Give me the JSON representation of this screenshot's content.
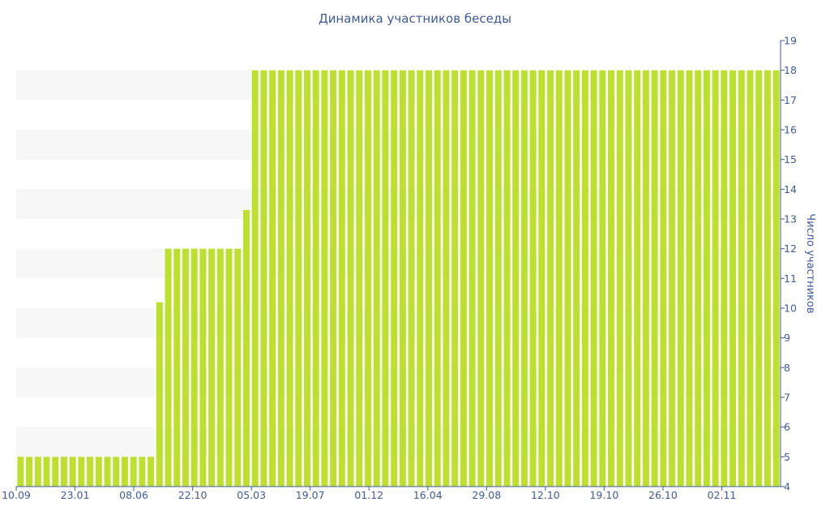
{
  "chart_data": {
    "type": "bar",
    "title": "Динамика участников беседы",
    "xlabel": "",
    "ylabel": "Число участников",
    "ylim": [
      4,
      19
    ],
    "y_ticks": [
      4,
      5,
      6,
      7,
      8,
      9,
      10,
      11,
      12,
      13,
      14,
      15,
      16,
      17,
      18,
      19
    ],
    "y_axis_position": "right",
    "x_tick_labels": [
      "10.09",
      "23.01",
      "08.06",
      "22.10",
      "05.03",
      "19.07",
      "01.12",
      "16.04",
      "29.08",
      "12.10",
      "19.10",
      "26.10",
      "02.11"
    ],
    "grid": "alternating horizontal bands",
    "colors": {
      "bar": "#bddf2e",
      "axis": "#3e5b9a",
      "band": "#f7f7f7"
    },
    "values": [
      5,
      5,
      5,
      5,
      5,
      5,
      5,
      5,
      5,
      5,
      5,
      5,
      5,
      5,
      5,
      5,
      10.2,
      12,
      12,
      12,
      12,
      12,
      12,
      12,
      12,
      12,
      13.3,
      18,
      18,
      18,
      18,
      18,
      18,
      18,
      18,
      18,
      18,
      18,
      18,
      18,
      18,
      18,
      18,
      18,
      18,
      18,
      18,
      18,
      18,
      18,
      18,
      18,
      18,
      18,
      18,
      18,
      18,
      18,
      18,
      18,
      18,
      18,
      18,
      18,
      18,
      18,
      18,
      18,
      18,
      18,
      18,
      18,
      18,
      18,
      18,
      18,
      18,
      18,
      18,
      18,
      18,
      18,
      18,
      18,
      18,
      18,
      18,
      18
    ]
  }
}
